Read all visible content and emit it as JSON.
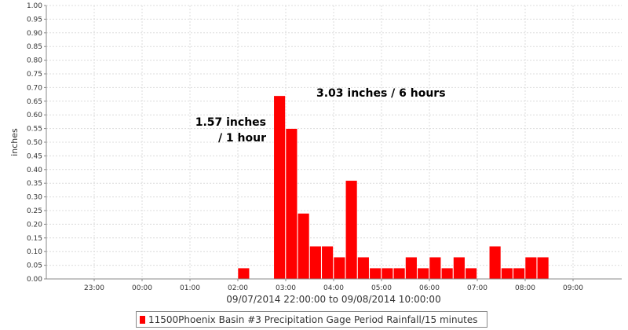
{
  "chart_data": {
    "type": "bar",
    "ylabel": "inches",
    "xlabel": "09/07/2014 22:00:00 to 09/08/2014 10:00:00",
    "ylim": [
      0,
      1.0
    ],
    "yticks": [
      "0.00",
      "0.05",
      "0.10",
      "0.15",
      "0.20",
      "0.25",
      "0.30",
      "0.35",
      "0.40",
      "0.45",
      "0.50",
      "0.55",
      "0.60",
      "0.65",
      "0.70",
      "0.75",
      "0.80",
      "0.85",
      "0.90",
      "0.95",
      "1.00"
    ],
    "xticks": [
      "23:00",
      "00:00",
      "01:00",
      "02:00",
      "03:00",
      "04:00",
      "05:00",
      "06:00",
      "07:00",
      "08:00",
      "09:00"
    ],
    "grid": true,
    "bar_color": "#ff0000",
    "series": [
      {
        "name": "11500Phoenix Basin #3 Precipitation Gage Period Rainfall/15 minutes",
        "points": [
          {
            "t": "02:00",
            "v": 0.04
          },
          {
            "t": "02:45",
            "v": 0.67
          },
          {
            "t": "03:00",
            "v": 0.55
          },
          {
            "t": "03:15",
            "v": 0.24
          },
          {
            "t": "03:30",
            "v": 0.12
          },
          {
            "t": "03:45",
            "v": 0.12
          },
          {
            "t": "04:00",
            "v": 0.08
          },
          {
            "t": "04:15",
            "v": 0.36
          },
          {
            "t": "04:30",
            "v": 0.08
          },
          {
            "t": "04:45",
            "v": 0.04
          },
          {
            "t": "05:00",
            "v": 0.04
          },
          {
            "t": "05:15",
            "v": 0.04
          },
          {
            "t": "05:30",
            "v": 0.08
          },
          {
            "t": "05:45",
            "v": 0.04
          },
          {
            "t": "06:00",
            "v": 0.08
          },
          {
            "t": "06:15",
            "v": 0.04
          },
          {
            "t": "06:30",
            "v": 0.08
          },
          {
            "t": "06:45",
            "v": 0.04
          },
          {
            "t": "07:15",
            "v": 0.12
          },
          {
            "t": "07:30",
            "v": 0.04
          },
          {
            "t": "07:45",
            "v": 0.04
          },
          {
            "t": "08:00",
            "v": 0.08
          },
          {
            "t": "08:15",
            "v": 0.08
          }
        ]
      }
    ],
    "annotations": [
      {
        "id": "one-hour",
        "lines": [
          "1.57 inches",
          "/ 1 hour"
        ]
      },
      {
        "id": "six-hour",
        "lines": [
          "3.03 inches / 6 hours"
        ]
      }
    ]
  },
  "legend": {
    "label": "11500Phoenix Basin #3 Precipitation Gage Period Rainfall/15 minutes"
  }
}
